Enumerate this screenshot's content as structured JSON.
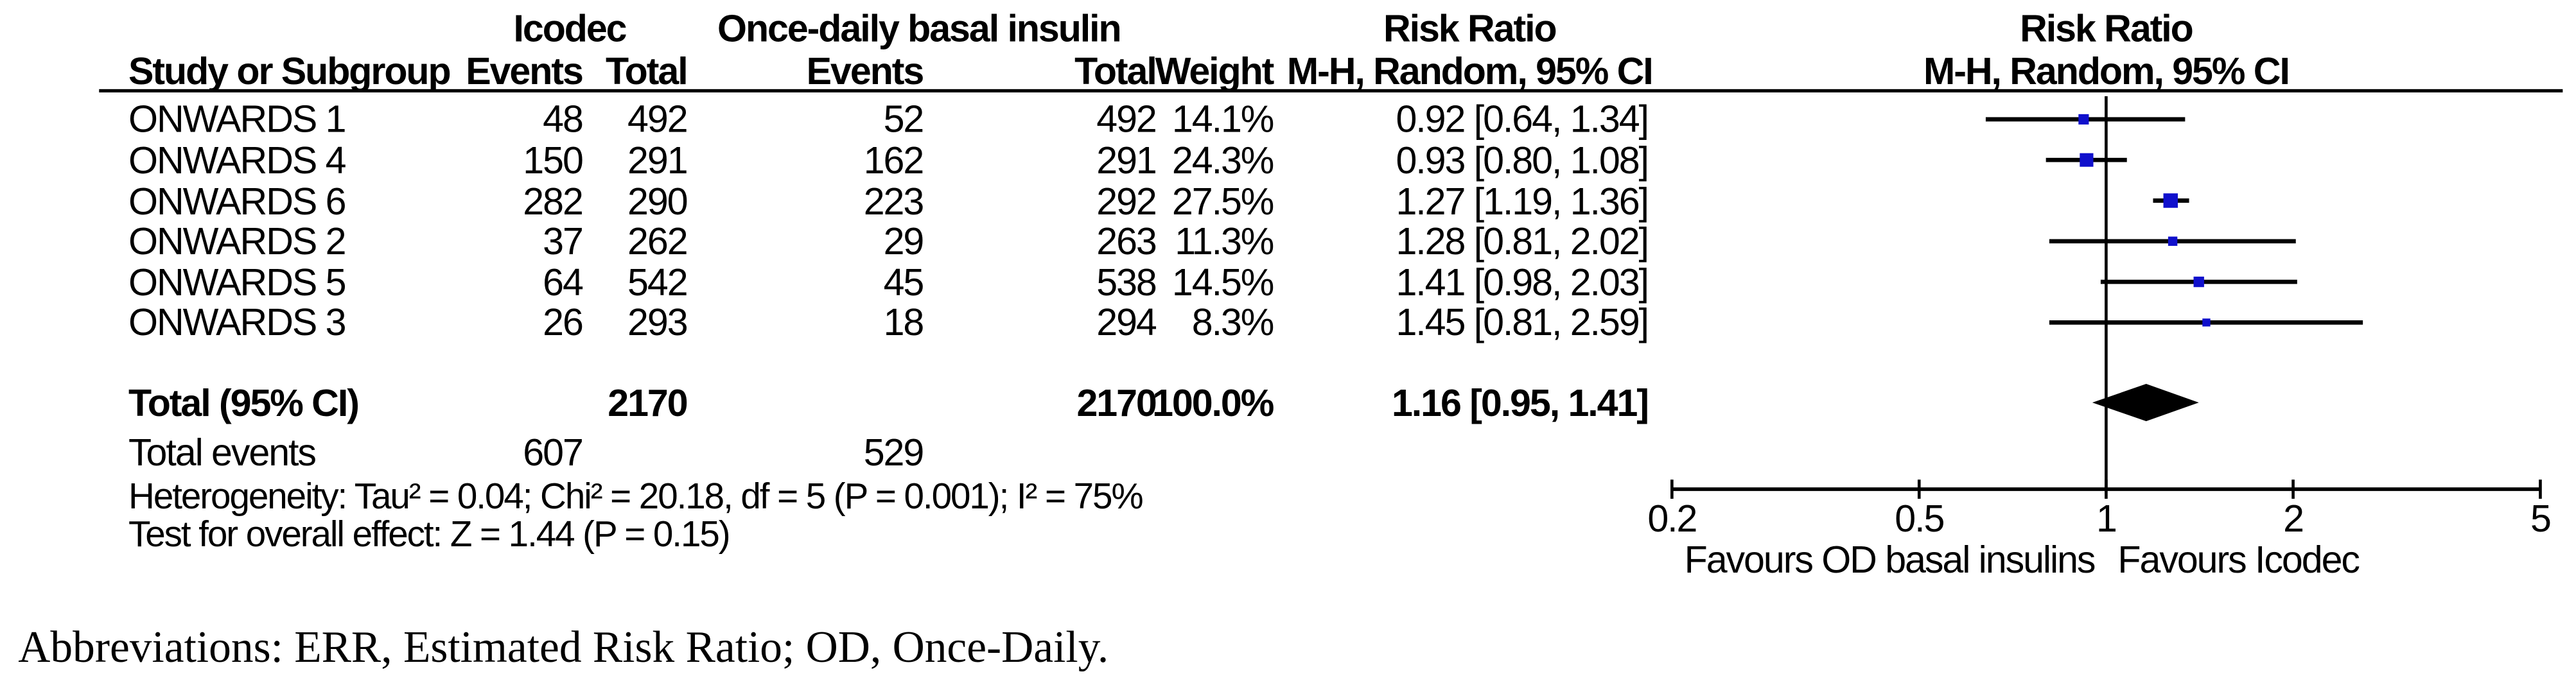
{
  "colors": {
    "marker_blue": "#1010CC",
    "ink_black": "#000000"
  },
  "headers": {
    "group_icodec": "Icodec",
    "group_od": "Once-daily basal insulin",
    "study": "Study or Subgroup",
    "events": "Events",
    "total": "Total",
    "weight": "Weight",
    "risk_ratio": "Risk Ratio",
    "mh_ci": "M-H, Random, 95% CI"
  },
  "rows": [
    {
      "study": "ONWARDS 1",
      "e1": "48",
      "t1": "492",
      "e2": "52",
      "t2": "492",
      "weight": "14.1%",
      "rr_text": "0.92 [0.64, 1.34]"
    },
    {
      "study": "ONWARDS 4",
      "e1": "150",
      "t1": "291",
      "e2": "162",
      "t2": "291",
      "weight": "24.3%",
      "rr_text": "0.93 [0.80, 1.08]"
    },
    {
      "study": "ONWARDS 6",
      "e1": "282",
      "t1": "290",
      "e2": "223",
      "t2": "292",
      "weight": "27.5%",
      "rr_text": "1.27 [1.19, 1.36]"
    },
    {
      "study": "ONWARDS 2",
      "e1": "37",
      "t1": "262",
      "e2": "29",
      "t2": "263",
      "weight": "11.3%",
      "rr_text": "1.28 [0.81, 2.02]"
    },
    {
      "study": "ONWARDS 5",
      "e1": "64",
      "t1": "542",
      "e2": "45",
      "t2": "538",
      "weight": "14.5%",
      "rr_text": "1.41 [0.98, 2.03]"
    },
    {
      "study": "ONWARDS 3",
      "e1": "26",
      "t1": "293",
      "e2": "18",
      "t2": "294",
      "weight": "8.3%",
      "rr_text": "1.45 [0.81, 2.59]"
    }
  ],
  "total_row": {
    "label": "Total (95% CI)",
    "t1": "2170",
    "t2": "2170",
    "weight": "100.0%",
    "rr_text": "1.16 [0.95, 1.41]"
  },
  "footer": {
    "total_events_label": "Total events",
    "total_events_icodec": "607",
    "total_events_od": "529",
    "heterogeneity": "Heterogeneity: Tau² = 0.04; Chi² = 20.18, df = 5 (P = 0.001); I² = 75%",
    "overall_effect": "Test for overall effect: Z = 1.44 (P = 0.15)"
  },
  "axis": {
    "ticks": [
      "0.2",
      "0.5",
      "1",
      "2",
      "5"
    ],
    "favours_left": "Favours OD basal insulins",
    "favours_right": "Favours Icodec"
  },
  "caption": "Abbreviations: ERR, Estimated Risk Ratio; OD, Once-Daily.",
  "chart_data": {
    "type": "forest",
    "title": "Risk Ratio",
    "method": "M-H, Random, 95% CI",
    "x_scale": "log",
    "x_ticks": [
      0.2,
      0.5,
      1,
      2,
      5
    ],
    "xlim": [
      0.2,
      5
    ],
    "studies": [
      {
        "name": "ONWARDS 1",
        "icodec_events": 48,
        "icodec_total": 492,
        "od_events": 52,
        "od_total": 492,
        "weight_pct": 14.1,
        "rr": 0.92,
        "ci": [
          0.64,
          1.34
        ]
      },
      {
        "name": "ONWARDS 4",
        "icodec_events": 150,
        "icodec_total": 291,
        "od_events": 162,
        "od_total": 291,
        "weight_pct": 24.3,
        "rr": 0.93,
        "ci": [
          0.8,
          1.08
        ]
      },
      {
        "name": "ONWARDS 6",
        "icodec_events": 282,
        "icodec_total": 290,
        "od_events": 223,
        "od_total": 292,
        "weight_pct": 27.5,
        "rr": 1.27,
        "ci": [
          1.19,
          1.36
        ]
      },
      {
        "name": "ONWARDS 2",
        "icodec_events": 37,
        "icodec_total": 262,
        "od_events": 29,
        "od_total": 263,
        "weight_pct": 11.3,
        "rr": 1.28,
        "ci": [
          0.81,
          2.02
        ]
      },
      {
        "name": "ONWARDS 5",
        "icodec_events": 64,
        "icodec_total": 542,
        "od_events": 45,
        "od_total": 538,
        "weight_pct": 14.5,
        "rr": 1.41,
        "ci": [
          0.98,
          2.03
        ]
      },
      {
        "name": "ONWARDS 3",
        "icodec_events": 26,
        "icodec_total": 293,
        "od_events": 18,
        "od_total": 294,
        "weight_pct": 8.3,
        "rr": 1.45,
        "ci": [
          0.81,
          2.59
        ]
      }
    ],
    "total": {
      "label": "Total (95% CI)",
      "icodec_events": 607,
      "icodec_total": 2170,
      "od_events": 529,
      "od_total": 2170,
      "weight_pct": 100.0,
      "rr": 1.16,
      "ci": [
        0.95,
        1.41
      ]
    },
    "heterogeneity": {
      "tau2": 0.04,
      "chi2": 20.18,
      "df": 5,
      "p": 0.001,
      "i2_pct": 75
    },
    "overall_effect": {
      "z": 1.44,
      "p": 0.15
    },
    "legend_left": "Favours OD basal insulins",
    "legend_right": "Favours Icodec"
  }
}
